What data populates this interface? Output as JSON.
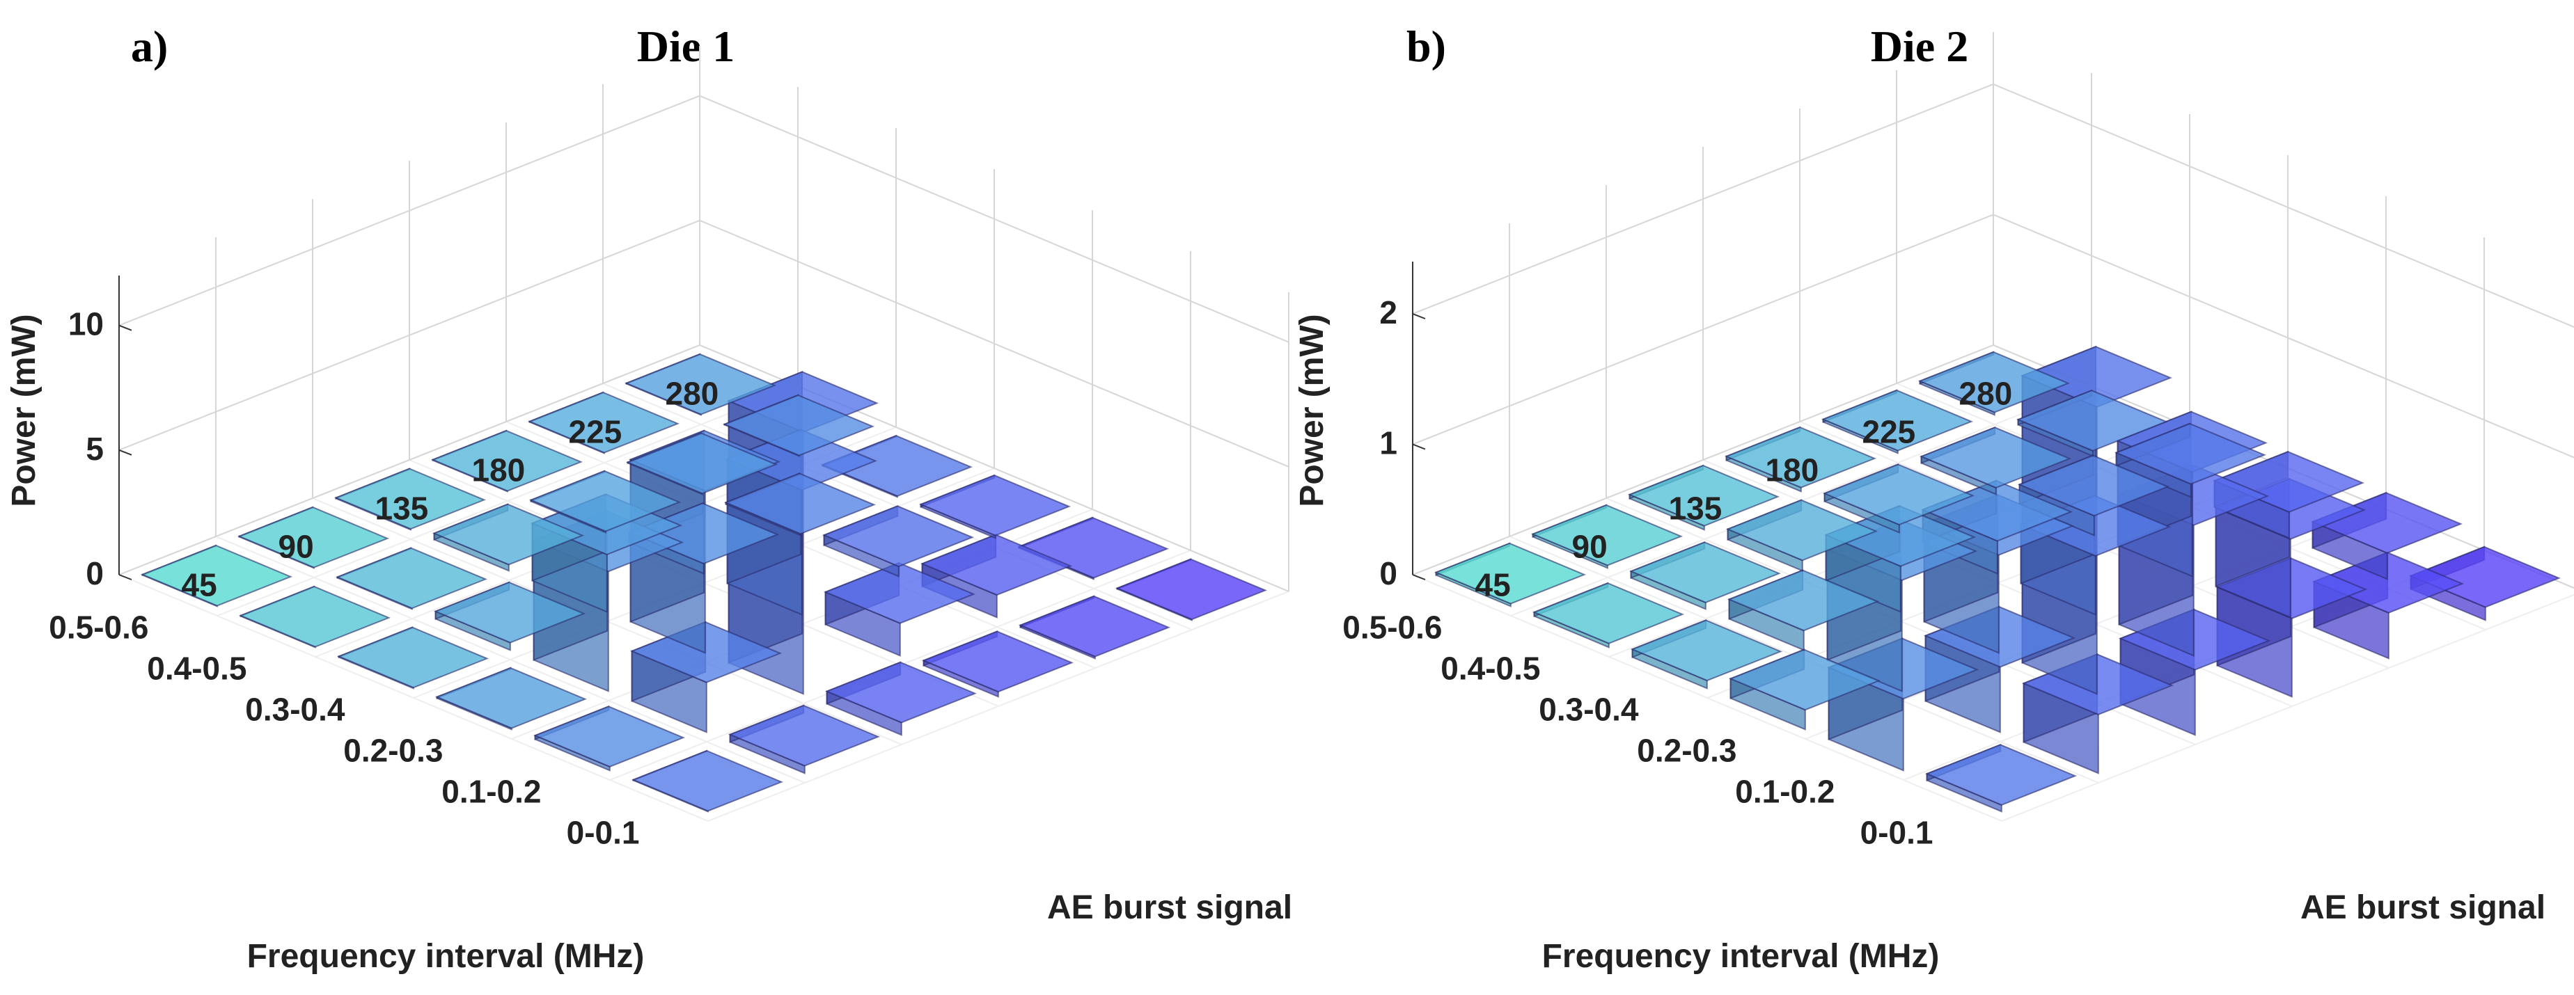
{
  "chart_data": [
    {
      "type": "bar3d",
      "panel_label": "a)",
      "title": "Die 1",
      "zlabel": "Power (mW)",
      "xlabel": "Frequency interval (MHz)",
      "ylabel": "AE burst signal",
      "zlim": [
        0,
        12
      ],
      "zticks": [
        0,
        5,
        10
      ],
      "frequency_intervals": [
        "0-0.1",
        "0.1-0.2",
        "0.2-0.3",
        "0.3-0.4",
        "0.4-0.5",
        "0.5-0.6"
      ],
      "signals": [
        45,
        90,
        135,
        180,
        225,
        280
      ],
      "grid": true,
      "values": [
        [
          0.02,
          0.3,
          0.5,
          0.2,
          0.08,
          0.03
        ],
        [
          0.15,
          2.0,
          10.5,
          1.3,
          0.9,
          0.05
        ],
        [
          0.05,
          4.8,
          6.5,
          5.0,
          0.4,
          0.1
        ],
        [
          0.03,
          0.3,
          2.3,
          0.4,
          0.06,
          0.04
        ],
        [
          0.02,
          0.03,
          0.25,
          0.05,
          0.03,
          0.02
        ],
        [
          0.02,
          0.02,
          0.03,
          0.02,
          0.02,
          0.02
        ]
      ]
    },
    {
      "type": "bar3d",
      "panel_label": "b)",
      "title": "Die 2",
      "zlabel": "Power (mW)",
      "xlabel": "Frequency interval (MHz)",
      "ylabel": "AE burst signal",
      "zlim": [
        0,
        2.4
      ],
      "zticks": [
        0,
        1,
        2
      ],
      "frequency_intervals": [
        "0-0.1",
        "0.1-0.2",
        "0.2-0.3",
        "0.3-0.4",
        "0.4-0.5",
        "0.5-0.6"
      ],
      "signals": [
        45,
        90,
        135,
        180,
        225,
        280
      ],
      "grid": true,
      "values": [
        [
          0.05,
          0.45,
          0.5,
          0.6,
          0.35,
          0.1
        ],
        [
          0.55,
          0.5,
          2.2,
          1.0,
          0.6,
          0.2
        ],
        [
          0.15,
          0.85,
          0.75,
          0.45,
          0.8,
          0.2
        ],
        [
          0.06,
          0.15,
          0.35,
          0.25,
          0.15,
          0.1
        ],
        [
          0.03,
          0.05,
          0.08,
          0.06,
          0.05,
          0.04
        ],
        [
          0.02,
          0.02,
          0.03,
          0.03,
          0.02,
          0.02
        ]
      ]
    }
  ]
}
